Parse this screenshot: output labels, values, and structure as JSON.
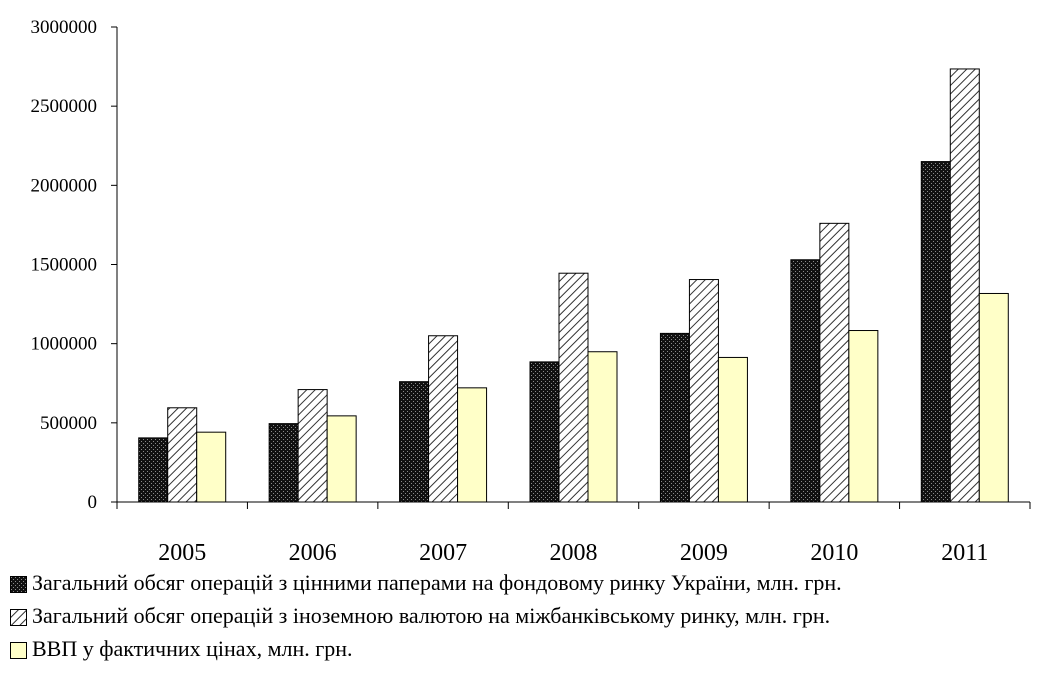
{
  "chart_data": {
    "type": "bar",
    "categories": [
      "2005",
      "2006",
      "2007",
      "2008",
      "2009",
      "2010",
      "2011"
    ],
    "series": [
      {
        "name": "Загальний обсяг операцій з цінними паперами на фондовому ринку України, млн. грн.",
        "values": [
          405000,
          495000,
          760000,
          885000,
          1065000,
          1530000,
          2150000
        ],
        "pattern": "dots-dark"
      },
      {
        "name": "Загальний обсяг операцій з іноземною валютою на міжбанківському ринку, млн. грн.",
        "values": [
          595000,
          710000,
          1050000,
          1445000,
          1405000,
          1760000,
          2735000
        ],
        "pattern": "diagonal-hatch"
      },
      {
        "name": "ВВП у фактичних цінах, млн. грн.",
        "values": [
          441000,
          544000,
          721000,
          949000,
          913000,
          1083000,
          1317000
        ],
        "pattern": "solid-cream"
      }
    ],
    "y_ticks": [
      "0",
      "500000",
      "1000000",
      "1500000",
      "2000000",
      "2500000",
      "3000000"
    ],
    "ylim": [
      0,
      3000000
    ],
    "title": "",
    "xlabel": "",
    "ylabel": "",
    "grid": false,
    "legend_position": "bottom",
    "colors": {
      "axis": "#000000",
      "dark_fill": "#1a1a1a",
      "hatch_bg": "#ffffff",
      "cream": "#ffffc8"
    }
  }
}
